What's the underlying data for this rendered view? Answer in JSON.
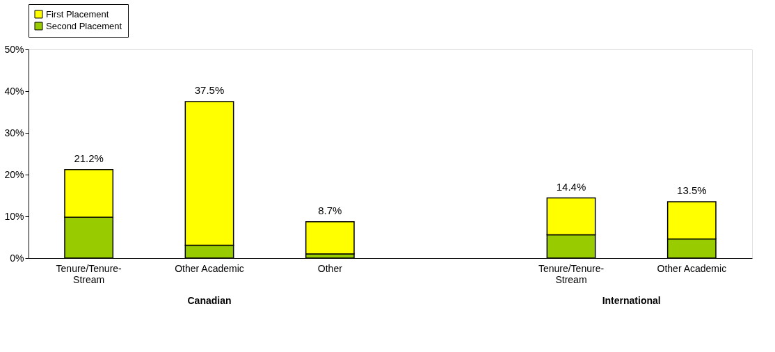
{
  "chart_data": {
    "type": "bar",
    "stacked": true,
    "categories": [
      "Tenure/Tenure-Stream",
      "Other Academic",
      "Other",
      null,
      "Tenure/Tenure-Stream",
      "Other Academic"
    ],
    "series": [
      {
        "name": "Second Placement",
        "color": "#99cc00",
        "values": [
          9.8,
          3.1,
          1.0,
          null,
          5.6,
          4.6
        ]
      },
      {
        "name": "First Placement",
        "color": "#ffff00",
        "values": [
          11.4,
          34.4,
          7.7,
          null,
          8.8,
          8.9
        ]
      }
    ],
    "totals": [
      "21.2%",
      "37.5%",
      "8.7%",
      null,
      "14.4%",
      "13.5%"
    ],
    "ylim": [
      0,
      50
    ],
    "yticks": [
      {
        "value": 0,
        "label": "0%"
      },
      {
        "value": 10,
        "label": "10%"
      },
      {
        "value": 20,
        "label": "20%"
      },
      {
        "value": 30,
        "label": "30%"
      },
      {
        "value": 40,
        "label": "40%"
      },
      {
        "value": 50,
        "label": "50%"
      }
    ],
    "annotations": [
      "Canadian",
      "International"
    ],
    "grid": false,
    "legend": "top"
  }
}
